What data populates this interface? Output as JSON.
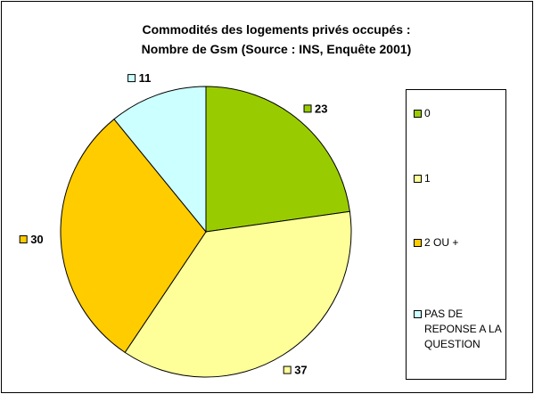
{
  "chart_data": {
    "type": "pie",
    "title": "Commodités des logements privés occupés :\nNombre de Gsm (Source : INS, Enquête 2001)",
    "categories": [
      "0",
      "1",
      "2 OU +",
      "PAS DE REPONSE A LA QUESTION"
    ],
    "values": [
      23,
      37,
      30,
      11
    ],
    "colors": [
      "#99cc00",
      "#ffff99",
      "#ffcc00",
      "#ccffff"
    ],
    "legend": "right"
  }
}
